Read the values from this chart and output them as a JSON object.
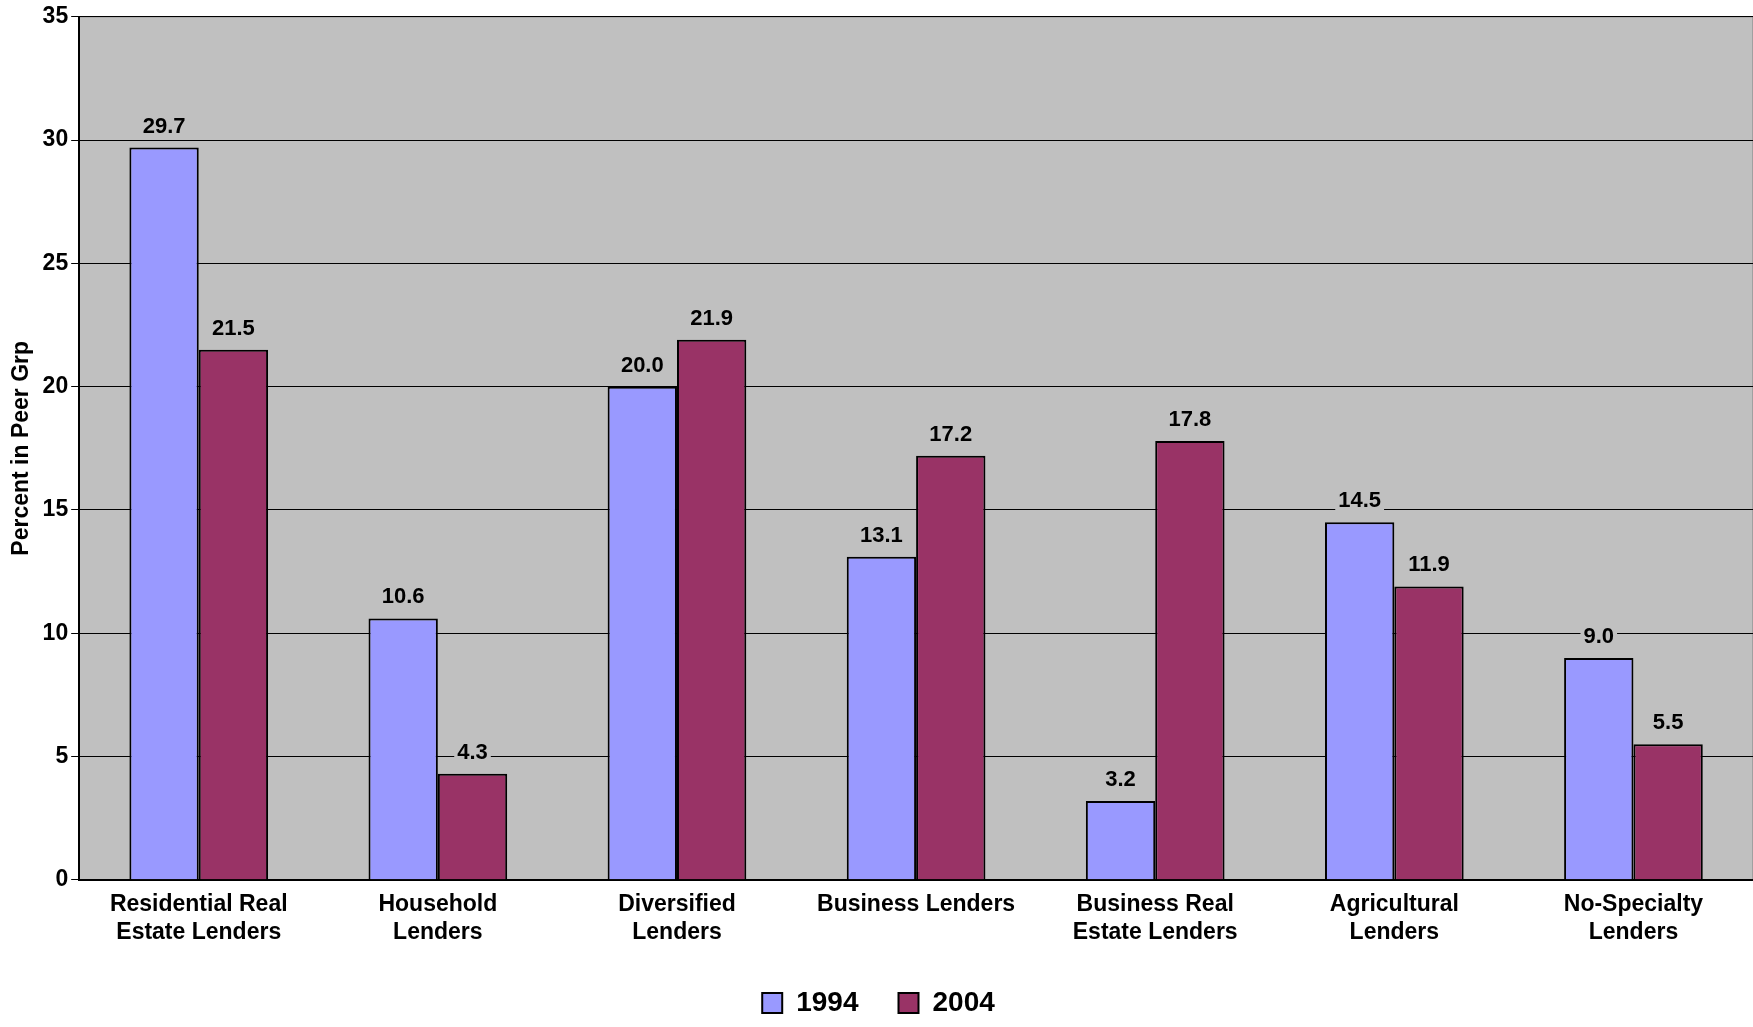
{
  "chart_data": {
    "type": "bar",
    "ylabel": "Percent in Peer Grp",
    "categories": [
      "Residential Real Estate Lenders",
      "Household Lenders",
      "Diversified Lenders",
      "Business Lenders",
      "Business Real Estate Lenders",
      "Agricultural Lenders",
      "No-Specialty Lenders"
    ],
    "series": [
      {
        "name": "1994",
        "color": "#9999ff",
        "values": [
          29.7,
          10.6,
          20.0,
          13.1,
          3.2,
          14.5,
          9.0
        ],
        "value_labels": [
          "29.7",
          "10.6",
          "20.0",
          "13.1",
          "3.2",
          "14.5",
          "9.0"
        ]
      },
      {
        "name": "2004",
        "color": "#993366",
        "values": [
          21.5,
          4.3,
          21.9,
          17.2,
          17.8,
          11.9,
          5.5
        ],
        "value_labels": [
          "21.5",
          "4.3",
          "21.9",
          "17.2",
          "17.8",
          "11.9",
          "5.5"
        ]
      }
    ],
    "ylim": [
      0,
      35
    ],
    "yticks": [
      0,
      5,
      10,
      15,
      20,
      25,
      30,
      35
    ],
    "grid": "y",
    "legend": "bottom"
  }
}
